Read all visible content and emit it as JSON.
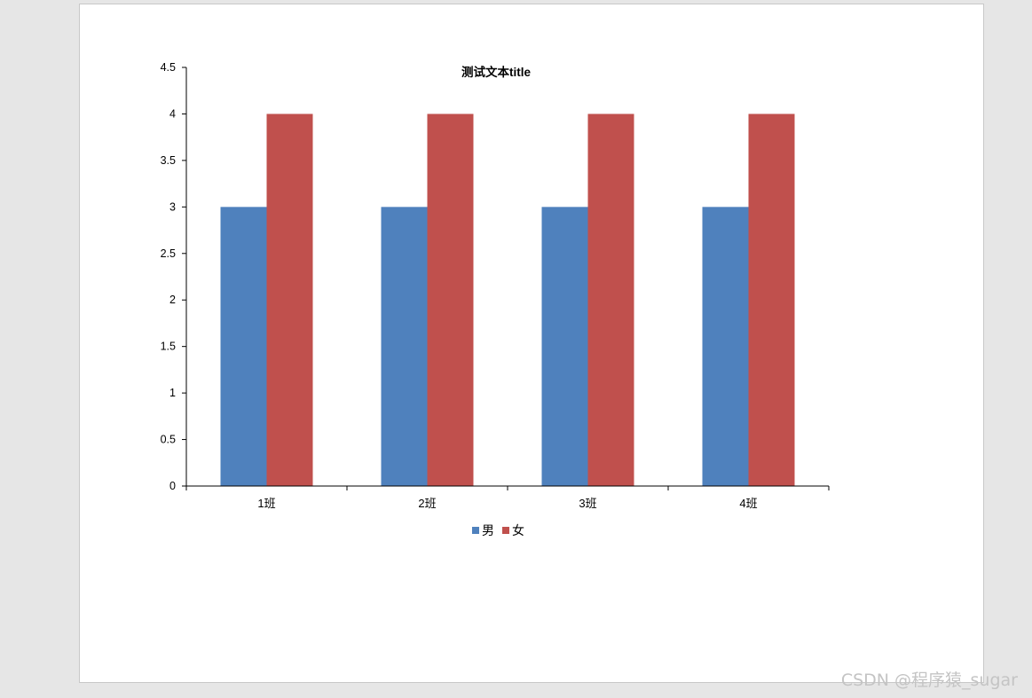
{
  "chart_data": {
    "type": "bar",
    "title": "测试文本title",
    "categories": [
      "1班",
      "2班",
      "3班",
      "4班"
    ],
    "series": [
      {
        "name": "男",
        "values": [
          3,
          3,
          3,
          3
        ],
        "color": "#4f81bd"
      },
      {
        "name": "女",
        "values": [
          4,
          4,
          4,
          4
        ],
        "color": "#c0504d"
      }
    ],
    "ylim": [
      0,
      4.5
    ],
    "yticks": [
      "0",
      "0.5",
      "1",
      "1.5",
      "2",
      "2.5",
      "3",
      "3.5",
      "4",
      "4.5"
    ],
    "xlabel": "",
    "ylabel": "",
    "grid": false,
    "legend": "bottom"
  },
  "watermark": "CSDN @程序猿_sugar"
}
